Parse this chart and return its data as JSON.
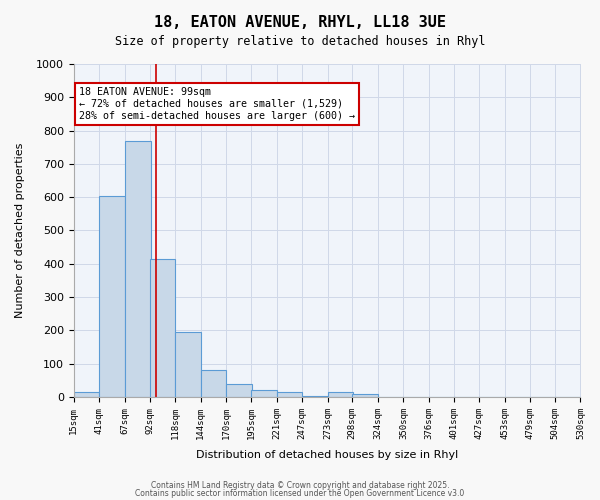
{
  "title_line1": "18, EATON AVENUE, RHYL, LL18 3UE",
  "title_line2": "Size of property relative to detached houses in Rhyl",
  "xlabel": "Distribution of detached houses by size in Rhyl",
  "ylabel": "Number of detached properties",
  "bins": [
    15,
    41,
    67,
    92,
    118,
    144,
    170,
    195,
    221,
    247,
    273,
    298,
    324,
    350,
    376,
    401,
    427,
    453,
    479,
    504,
    530
  ],
  "counts": [
    15,
    605,
    770,
    415,
    195,
    80,
    38,
    20,
    15,
    3,
    15,
    10,
    0,
    0,
    0,
    0,
    0,
    0,
    0,
    0
  ],
  "bar_color": "#c8d8e8",
  "bar_edge_color": "#5b9bd5",
  "grid_color": "#d0d8e8",
  "bg_color": "#f0f4fa",
  "vline_x": 99,
  "vline_color": "#cc0000",
  "annotation_text": "18 EATON AVENUE: 99sqm\n← 72% of detached houses are smaller (1,529)\n28% of semi-detached houses are larger (600) →",
  "annotation_box_color": "#cc0000",
  "ylim": [
    0,
    1000
  ],
  "yticks": [
    0,
    100,
    200,
    300,
    400,
    500,
    600,
    700,
    800,
    900,
    1000
  ],
  "footer_line1": "Contains HM Land Registry data © Crown copyright and database right 2025.",
  "footer_line2": "Contains public sector information licensed under the Open Government Licence v3.0"
}
